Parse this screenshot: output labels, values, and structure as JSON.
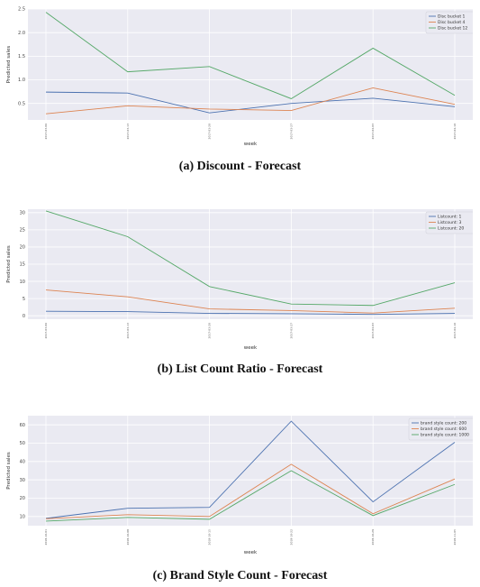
{
  "colors": {
    "series1": "#4c72b0",
    "series2": "#dd8452",
    "series3": "#55a868",
    "plot_bg": "#eaeaf2"
  },
  "chart_data": [
    {
      "type": "line",
      "caption": "(a) Discount - Forecast",
      "xlabel": "week",
      "ylabel": "Predicted sales",
      "ylim": [
        0.15,
        2.5
      ],
      "yticks": [
        0.5,
        1.0,
        1.5,
        2.0,
        2.5
      ],
      "grid": true,
      "legend_position": "top-right",
      "x": [
        "2017-03-06",
        "2017-03-13",
        "2017-03-20",
        "2017-03-27",
        "2017-04-03",
        "2017-04-10"
      ],
      "series": [
        {
          "name": "Disc bucket 1",
          "values": [
            0.74,
            0.72,
            0.3,
            0.5,
            0.61,
            0.43
          ]
        },
        {
          "name": "Disc bucket 4",
          "values": [
            0.28,
            0.45,
            0.38,
            0.35,
            0.83,
            0.48
          ]
        },
        {
          "name": "Disc bucket 12",
          "values": [
            2.43,
            1.17,
            1.28,
            0.6,
            1.67,
            0.67
          ]
        }
      ]
    },
    {
      "type": "line",
      "caption": "(b) List Count Ratio - Forecast",
      "xlabel": "week",
      "ylabel": "Predicted sales",
      "ylim": [
        -1,
        31
      ],
      "yticks": [
        0,
        5,
        10,
        15,
        20,
        25,
        30
      ],
      "grid": true,
      "legend_position": "top-right",
      "x": [
        "2017-03-06",
        "2017-03-13",
        "2017-03-20",
        "2017-03-27",
        "2017-04-03",
        "2017-04-10"
      ],
      "series": [
        {
          "name": "Listcount: 1",
          "values": [
            1.3,
            1.2,
            0.7,
            0.6,
            0.4,
            0.7
          ]
        },
        {
          "name": "Listcount: 3",
          "values": [
            7.5,
            5.5,
            2.0,
            1.5,
            0.8,
            2.2
          ]
        },
        {
          "name": "Listcount: 20",
          "values": [
            30.5,
            23.0,
            8.5,
            3.4,
            3.0,
            9.6
          ]
        }
      ]
    },
    {
      "type": "line",
      "caption": "(c) Brand Style Count - Forecast",
      "xlabel": "week",
      "ylabel": "Predicted sales",
      "ylim": [
        5,
        65
      ],
      "yticks": [
        10,
        20,
        30,
        40,
        50,
        60
      ],
      "grid": true,
      "legend_position": "top-right",
      "x": [
        "2018-10-01",
        "2018-10-08",
        "2018-10-15",
        "2018-10-22",
        "2018-10-29",
        "2018-11-05"
      ],
      "series": [
        {
          "name": "brand style count: 200",
          "values": [
            9.0,
            14.5,
            15.0,
            62.0,
            18.0,
            50.5
          ]
        },
        {
          "name": "brand style count: 600",
          "values": [
            8.8,
            11.0,
            10.0,
            38.5,
            11.5,
            30.5
          ]
        },
        {
          "name": "brand style count: 1000",
          "values": [
            7.5,
            9.5,
            8.5,
            35.0,
            10.5,
            27.5
          ]
        }
      ]
    }
  ]
}
